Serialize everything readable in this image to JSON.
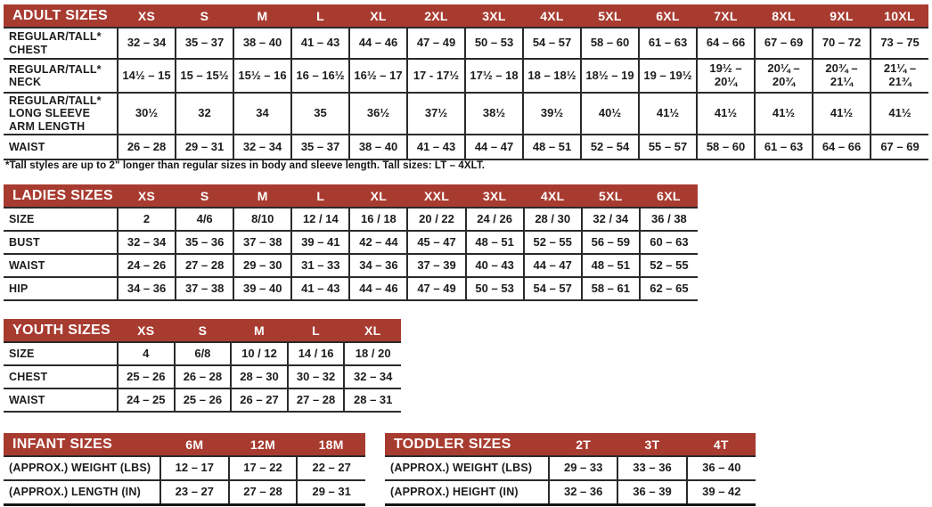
{
  "colors": {
    "header_bg": "#a83b30",
    "header_text": "#ffffff",
    "body_text": "#1c1c1c",
    "border": "#2a2a2a",
    "page_bg": "#ffffff"
  },
  "tables": {
    "adult": {
      "title": "ADULT SIZES",
      "columns": [
        "XS",
        "S",
        "M",
        "L",
        "XL",
        "2XL",
        "3XL",
        "4XL",
        "5XL",
        "6XL",
        "7XL",
        "8XL",
        "9XL",
        "10XL"
      ],
      "rows": [
        {
          "label": "REGULAR/TALL*\nCHEST",
          "values": [
            "32 – 34",
            "35 – 37",
            "38 – 40",
            "41 – 43",
            "44 – 46",
            "47 – 49",
            "50 – 53",
            "54 – 57",
            "58 – 60",
            "61 – 63",
            "64 – 66",
            "67 – 69",
            "70 – 72",
            "73 – 75"
          ]
        },
        {
          "label": "REGULAR/TALL*\nNECK",
          "values": [
            "14½ – 15",
            "15 – 15½",
            "15½ – 16",
            "16 – 16½",
            "16½ – 17",
            "17 - 17½",
            "17½ – 18",
            "18 – 18½",
            "18½ – 19",
            "19 – 19½",
            "19½ – 20¼",
            "20¼ – 20¾",
            "20¾ – 21¼",
            "21¼ – 21¾"
          ]
        },
        {
          "label": "REGULAR/TALL*\nLONG SLEEVE\nARM LENGTH",
          "values": [
            "30½",
            "32",
            "34",
            "35",
            "36½",
            "37½",
            "38½",
            "39½",
            "40½",
            "41½",
            "41½",
            "41½",
            "41½",
            "41½"
          ]
        },
        {
          "label": "WAIST",
          "values": [
            "26 – 28",
            "29 – 31",
            "32 – 34",
            "35 – 37",
            "38 – 40",
            "41 – 43",
            "44 – 47",
            "48 – 51",
            "52 – 54",
            "55 – 57",
            "58 – 60",
            "61 – 63",
            "64 – 66",
            "67 – 69"
          ]
        }
      ],
      "footnote": "*Tall styles are up to 2\" longer than regular sizes in body and sleeve length. Tall sizes: LT – 4XLT."
    },
    "ladies": {
      "title": "LADIES SIZES",
      "columns": [
        "XS",
        "S",
        "M",
        "L",
        "XL",
        "XXL",
        "3XL",
        "4XL",
        "5XL",
        "6XL"
      ],
      "rows": [
        {
          "label": "SIZE",
          "values": [
            "2",
            "4/6",
            "8/10",
            "12 / 14",
            "16 / 18",
            "20 / 22",
            "24 / 26",
            "28 / 30",
            "32 / 34",
            "36 / 38"
          ]
        },
        {
          "label": "BUST",
          "values": [
            "32 – 34",
            "35 – 36",
            "37 – 38",
            "39 – 41",
            "42 – 44",
            "45 – 47",
            "48 – 51",
            "52 – 55",
            "56 – 59",
            "60 – 63"
          ]
        },
        {
          "label": "WAIST",
          "values": [
            "24 – 26",
            "27 – 28",
            "29 – 30",
            "31 – 33",
            "34 – 36",
            "37 – 39",
            "40 – 43",
            "44 – 47",
            "48 – 51",
            "52 – 55"
          ]
        },
        {
          "label": "HIP",
          "values": [
            "34 – 36",
            "37 – 38",
            "39 – 40",
            "41 – 43",
            "44 – 46",
            "47 – 49",
            "50 – 53",
            "54 – 57",
            "58 – 61",
            "62 – 65"
          ]
        }
      ]
    },
    "youth": {
      "title": "YOUTH SIZES",
      "columns": [
        "XS",
        "S",
        "M",
        "L",
        "XL"
      ],
      "rows": [
        {
          "label": "SIZE",
          "values": [
            "4",
            "6/8",
            "10 / 12",
            "14 / 16",
            "18 / 20"
          ]
        },
        {
          "label": "CHEST",
          "values": [
            "25 – 26",
            "26 – 28",
            "28 – 30",
            "30 – 32",
            "32 – 34"
          ]
        },
        {
          "label": "WAIST",
          "values": [
            "24 – 25",
            "25 – 26",
            "26 – 27",
            "27 – 28",
            "28 – 31"
          ]
        }
      ]
    },
    "infant": {
      "title": "INFANT SIZES",
      "columns": [
        "6M",
        "12M",
        "18M"
      ],
      "rows": [
        {
          "label": "(APPROX.) WEIGHT (LBS)",
          "values": [
            "12 – 17",
            "17 – 22",
            "22 – 27"
          ]
        },
        {
          "label": "(APPROX.) LENGTH (IN)",
          "values": [
            "23 – 27",
            "27 – 28",
            "29 – 31"
          ]
        }
      ]
    },
    "toddler": {
      "title": "TODDLER SIZES",
      "columns": [
        "2T",
        "3T",
        "4T"
      ],
      "rows": [
        {
          "label": "(APPROX.) WEIGHT (LBS)",
          "values": [
            "29 – 33",
            "33 – 36",
            "36 – 40"
          ]
        },
        {
          "label": "(APPROX.) HEIGHT (IN)",
          "values": [
            "32 – 36",
            "36 – 39",
            "39 – 42"
          ]
        }
      ]
    }
  }
}
